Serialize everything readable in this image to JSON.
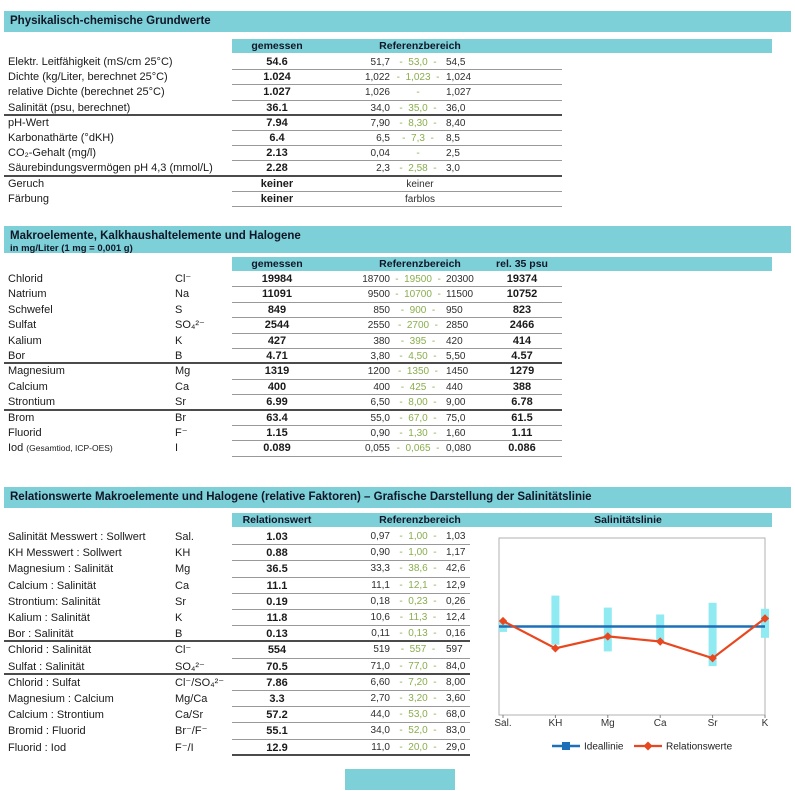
{
  "colors": {
    "band": "#7dd0d8",
    "header_text": "#0f1626",
    "text": "#1a1a1a",
    "reference_mid_green": "#8aae4e",
    "separator_line": "#999999",
    "group_separator_line": "#4b4b4b"
  },
  "sections": [
    {
      "id": "grundwerte",
      "title": "Physikalisch-chemische Grundwerte",
      "columns": {
        "measured": "gemessen",
        "reference": "Referenzbereich"
      },
      "rows": [
        {
          "label": "Elektr. Leitfähigkeit (mS/cm 25°C)",
          "value": "54.6",
          "ref": {
            "min": "51,7",
            "mid": "53,0",
            "max": "54,5"
          }
        },
        {
          "label": "Dichte (kg/Liter, berechnet 25°C)",
          "value": "1.024",
          "ref": {
            "min": "1,022",
            "mid": "1,023",
            "max": "1,024"
          }
        },
        {
          "label": "relative Dichte (berechnet 25°C)",
          "value": "1.027",
          "ref": {
            "min": "1,026",
            "max": "1,027"
          }
        },
        {
          "label": "Salinität (psu, berechnet)",
          "value": "36.1",
          "ref": {
            "min": "34,0",
            "mid": "35,0",
            "max": "36,0"
          },
          "sep": "group"
        },
        {
          "label": "pH-Wert",
          "value": "7.94",
          "ref": {
            "min": "7,90",
            "mid": "8,30",
            "max": "8,40"
          }
        },
        {
          "label": "Karbonathärte (°dKH)",
          "value": "6.4",
          "ref": {
            "min": "6,5",
            "mid": "7,3",
            "max": "8,5"
          }
        },
        {
          "label": "CO₂-Gehalt (mg/l)",
          "value": "2.13",
          "ref": {
            "min": "0,04",
            "max": "2,5"
          }
        },
        {
          "label": "Säurebindungsvermögen pH 4,3 (mmol/L)",
          "value": "2.28",
          "ref": {
            "min": "2,3",
            "mid": "2,58",
            "max": "3,0"
          },
          "sep": "group"
        },
        {
          "label": "Geruch",
          "value": "keiner",
          "ref": {
            "text": "keiner"
          }
        },
        {
          "label": "Färbung",
          "value": "keiner",
          "ref": {
            "text": "farblos"
          }
        }
      ]
    },
    {
      "id": "makroelemente",
      "title": "Makroelemente, Kalkhaushaltelemente und Halogene",
      "subtitle": "in mg/Liter (1 mg = 0,001 g)",
      "columns": {
        "measured": "gemessen",
        "reference": "Referenzbereich",
        "rel35": "rel. 35 psu"
      },
      "rows": [
        {
          "label": "Chlorid",
          "symbol": "Cl⁻",
          "value": "19984",
          "ref": {
            "min": "18700",
            "mid": "19500",
            "max": "20300"
          },
          "rel35": "19374"
        },
        {
          "label": "Natrium",
          "symbol": "Na",
          "value": "11091",
          "ref": {
            "min": "9500",
            "mid": "10700",
            "max": "11500"
          },
          "rel35": "10752"
        },
        {
          "label": "Schwefel",
          "symbol": "S",
          "value": "849",
          "ref": {
            "min": "850",
            "mid": "900",
            "max": "950"
          },
          "rel35": "823"
        },
        {
          "label": "Sulfat",
          "symbol": "SO₄²⁻",
          "value": "2544",
          "ref": {
            "min": "2550",
            "mid": "2700",
            "max": "2850"
          },
          "rel35": "2466"
        },
        {
          "label": "Kalium",
          "symbol": "K",
          "value": "427",
          "ref": {
            "min": "380",
            "mid": "395",
            "max": "420"
          },
          "rel35": "414"
        },
        {
          "label": "Bor",
          "symbol": "B",
          "value": "4.71",
          "ref": {
            "min": "3,80",
            "mid": "4,50",
            "max": "5,50"
          },
          "rel35": "4.57",
          "sep": "group"
        },
        {
          "label": "Magnesium",
          "symbol": "Mg",
          "value": "1319",
          "ref": {
            "min": "1200",
            "mid": "1350",
            "max": "1450"
          },
          "rel35": "1279"
        },
        {
          "label": "Calcium",
          "symbol": "Ca",
          "value": "400",
          "ref": {
            "min": "400",
            "mid": "425",
            "max": "440"
          },
          "rel35": "388"
        },
        {
          "label": "Strontium",
          "symbol": "Sr",
          "value": "6.99",
          "ref": {
            "min": "6,50",
            "mid": "8,00",
            "max": "9,00"
          },
          "rel35": "6.78",
          "sep": "group"
        },
        {
          "label": "Brom",
          "symbol": "Br",
          "value": "63.4",
          "ref": {
            "min": "55,0",
            "mid": "67,0",
            "max": "75,0"
          },
          "rel35": "61.5"
        },
        {
          "label": "Fluorid",
          "symbol": "F⁻",
          "value": "1.15",
          "ref": {
            "min": "0,90",
            "mid": "1,30",
            "max": "1,60"
          },
          "rel35": "1.11"
        },
        {
          "label": "Iod",
          "note": "(Gesamtiod, ICP-OES)",
          "symbol": "I",
          "value": "0.089",
          "ref": {
            "min": "0,055",
            "mid": "0,065",
            "max": "0,080"
          },
          "rel35": "0.086"
        }
      ]
    },
    {
      "id": "relationswerte",
      "title": "Relationswerte Makroelemente und Halogene (relative Faktoren) – Grafische Darstellung der Salinitätslinie",
      "columns": {
        "measured": "Relationswert",
        "reference": "Referenzbereich",
        "chart": "Salinitätslinie"
      },
      "rows": [
        {
          "label": "Salinität Messwert : Sollwert",
          "symbol": "Sal.",
          "value": "1.03",
          "ref": {
            "min": "0,97",
            "mid": "1,00",
            "max": "1,03"
          }
        },
        {
          "label": "KH Messwert : Sollwert",
          "symbol": "KH",
          "value": "0.88",
          "ref": {
            "min": "0,90",
            "mid": "1,00",
            "max": "1,17"
          }
        },
        {
          "label": "Magnesium : Salinität",
          "symbol": "Mg",
          "value": "36.5",
          "ref": {
            "min": "33,3",
            "mid": "38,6",
            "max": "42,6"
          }
        },
        {
          "label": "Calcium : Salinität",
          "symbol": "Ca",
          "value": "11.1",
          "ref": {
            "min": "11,1",
            "mid": "12,1",
            "max": "12,9"
          }
        },
        {
          "label": "Strontium: Salinität",
          "symbol": "Sr",
          "value": "0.19",
          "ref": {
            "min": "0,18",
            "mid": "0,23",
            "max": "0,26"
          }
        },
        {
          "label": "Kalium : Salinität",
          "symbol": "K",
          "value": "11.8",
          "ref": {
            "min": "10,6",
            "mid": "11,3",
            "max": "12,4"
          }
        },
        {
          "label": "Bor : Salinität",
          "symbol": "B",
          "value": "0.13",
          "ref": {
            "min": "0,11",
            "mid": "0,13",
            "max": "0,16"
          },
          "sep": "group"
        },
        {
          "label": "Chlorid : Salinität",
          "symbol": "Cl⁻",
          "value": "554",
          "ref": {
            "min": "519",
            "mid": "557",
            "max": "597"
          }
        },
        {
          "label": "Sulfat : Salinität",
          "symbol": "SO₄²⁻",
          "value": "70.5",
          "ref": {
            "min": "71,0",
            "mid": "77,0",
            "max": "84,0"
          },
          "sep": "group"
        },
        {
          "label": "Chlorid : Sulfat",
          "symbol": "Cl⁻/SO₄²⁻",
          "value": "7.86",
          "ref": {
            "min": "6,60",
            "mid": "7,20",
            "max": "8,00"
          }
        },
        {
          "label": "Magnesium : Calcium",
          "symbol": "Mg/Ca",
          "value": "3.3",
          "ref": {
            "min": "2,70",
            "mid": "3,20",
            "max": "3,60"
          }
        },
        {
          "label": "Calcium : Strontium",
          "symbol": "Ca/Sr",
          "value": "57.2",
          "ref": {
            "min": "44,0",
            "mid": "53,0",
            "max": "68,0"
          }
        },
        {
          "label": "Bromid : Fluorid",
          "symbol": "Br⁻/F⁻",
          "value": "55.1",
          "ref": {
            "min": "34,0",
            "mid": "52,0",
            "max": "83,0"
          }
        },
        {
          "label": "Fluorid : Iod",
          "symbol": "F⁻/I",
          "value": "12.9",
          "ref": {
            "min": "11,0",
            "mid": "20,0",
            "max": "29,0"
          },
          "sep": "dark"
        }
      ]
    }
  ],
  "chart_data": {
    "type": "line",
    "title": "Salinitätslinie",
    "categories": [
      "Sal.",
      "KH",
      "Mg",
      "Ca",
      "Sr",
      "K"
    ],
    "series": [
      {
        "name": "Ideallinie",
        "color": "#1d70b8",
        "marker": "square",
        "values": [
          1.0,
          1.0,
          1.0,
          1.0,
          1.0,
          1.0
        ]
      },
      {
        "name": "Relationswerte",
        "color": "#e8471f",
        "marker": "diamond",
        "values": [
          1.03,
          0.88,
          36.5,
          11.1,
          0.19,
          11.8
        ]
      }
    ],
    "reference_ranges": [
      {
        "category": "Sal.",
        "min": 0.97,
        "mid": 1.0,
        "max": 1.03
      },
      {
        "category": "KH",
        "min": 0.9,
        "mid": 1.0,
        "max": 1.17
      },
      {
        "category": "Mg",
        "min": 33.3,
        "mid": 38.6,
        "max": 42.6
      },
      {
        "category": "Ca",
        "min": 11.1,
        "mid": 12.1,
        "max": 12.9
      },
      {
        "category": "Sr",
        "min": 0.18,
        "mid": 0.23,
        "max": 0.26
      },
      {
        "category": "K",
        "min": 10.6,
        "mid": 11.3,
        "max": 12.4
      }
    ],
    "range_bar_color": "#8feaf2",
    "normalization": "values plotted as value/mid ratio, Ideallinie = 1.0",
    "legend_position": "bottom",
    "grid": false
  }
}
